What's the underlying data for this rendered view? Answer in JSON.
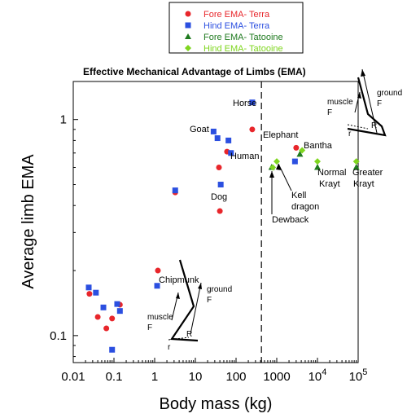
{
  "chart_data": {
    "type": "scatter",
    "title": "Effective Mechanical Advantage of Limbs (EMA)",
    "xlabel": "Body mass (kg)",
    "ylabel": "Average limb EMA",
    "x_scale": "log",
    "y_scale": "log",
    "xlim": [
      0.01,
      100000
    ],
    "ylim": [
      0.075,
      1.5
    ],
    "x_ticks": [
      {
        "value": 0.01,
        "label": "0.01"
      },
      {
        "value": 0.1,
        "label": "0.1"
      },
      {
        "value": 1,
        "label": "1"
      },
      {
        "value": 10,
        "label": "10"
      },
      {
        "value": 100,
        "label": "100"
      },
      {
        "value": 1000,
        "label": "1000"
      },
      {
        "value": 10000,
        "label": "10",
        "exp": "4"
      },
      {
        "value": 100000,
        "label": "10",
        "exp": "5"
      }
    ],
    "y_ticks": [
      {
        "value": 0.1,
        "label": "0.1"
      },
      {
        "value": 1,
        "label": "1"
      }
    ],
    "divider_x": 420,
    "legend_position": "top-center",
    "series": [
      {
        "name": "Fore EMA- Terra",
        "color": "#e8262b",
        "marker": "circle",
        "points": [
          {
            "x": 0.025,
            "y": 0.156
          },
          {
            "x": 0.04,
            "y": 0.122
          },
          {
            "x": 0.065,
            "y": 0.108
          },
          {
            "x": 0.09,
            "y": 0.12
          },
          {
            "x": 0.14,
            "y": 0.139
          },
          {
            "x": 1.2,
            "y": 0.2
          },
          {
            "x": 3.2,
            "y": 0.46
          },
          {
            "x": 38,
            "y": 0.6
          },
          {
            "x": 40,
            "y": 0.377
          },
          {
            "x": 60,
            "y": 0.71
          },
          {
            "x": 250,
            "y": 0.9
          },
          {
            "x": 3000,
            "y": 0.74
          }
        ]
      },
      {
        "name": "Hind EMA- Terra",
        "color": "#2b4fe0",
        "marker": "square",
        "points": [
          {
            "x": 0.024,
            "y": 0.167
          },
          {
            "x": 0.036,
            "y": 0.158
          },
          {
            "x": 0.055,
            "y": 0.135
          },
          {
            "x": 0.09,
            "y": 0.086
          },
          {
            "x": 0.12,
            "y": 0.14
          },
          {
            "x": 0.14,
            "y": 0.13
          },
          {
            "x": 1.15,
            "y": 0.17
          },
          {
            "x": 3.2,
            "y": 0.47
          },
          {
            "x": 28,
            "y": 0.88
          },
          {
            "x": 35,
            "y": 0.82
          },
          {
            "x": 42,
            "y": 0.5
          },
          {
            "x": 65,
            "y": 0.8
          },
          {
            "x": 75,
            "y": 0.7
          },
          {
            "x": 250,
            "y": 1.2
          },
          {
            "x": 2800,
            "y": 0.64
          }
        ]
      },
      {
        "name": "Fore EMA- Tatooine",
        "color": "#1f7a1f",
        "marker": "triangle",
        "points": [
          {
            "x": 750,
            "y": 0.6
          },
          {
            "x": 3700,
            "y": 0.69
          },
          {
            "x": 10000,
            "y": 0.6
          },
          {
            "x": 90000,
            "y": 0.6
          }
        ]
      },
      {
        "name": "Hind EMA- Tatooine",
        "color": "#7fd61f",
        "marker": "diamond",
        "points": [
          {
            "x": 800,
            "y": 0.6
          },
          {
            "x": 1000,
            "y": 0.64
          },
          {
            "x": 4200,
            "y": 0.72
          },
          {
            "x": 10000,
            "y": 0.64
          },
          {
            "x": 90000,
            "y": 0.64
          }
        ]
      }
    ],
    "point_labels": [
      {
        "text": "Horse"
      },
      {
        "text": "Goat"
      },
      {
        "text": "Human"
      },
      {
        "text": "Elephant"
      },
      {
        "text": "Bantha"
      },
      {
        "text": "Dog"
      },
      {
        "text": "Chipmunk"
      },
      {
        "text": "Kell"
      },
      {
        "text": "dragon"
      },
      {
        "text": "Dewback"
      },
      {
        "text": "Normal"
      },
      {
        "text": "Krayt"
      },
      {
        "text": "Greater"
      },
      {
        "text": "Krayt"
      }
    ],
    "inset_labels": {
      "muscle": "muscle",
      "F": "F",
      "ground": "ground",
      "r": "r",
      "R": "R"
    }
  }
}
